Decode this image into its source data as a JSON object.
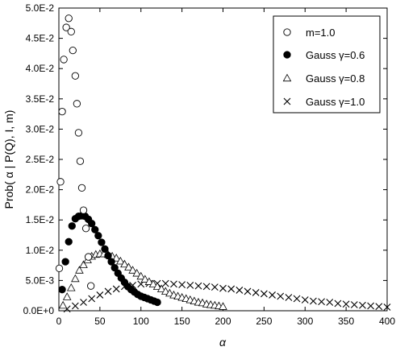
{
  "chart_data": {
    "type": "scatter",
    "title": "",
    "xlabel": "α",
    "ylabel": "Prob( α | P(Q), I, m)",
    "xlim": [
      0,
      400
    ],
    "ylim": [
      0,
      0.05
    ],
    "x_ticks": [
      0,
      50,
      100,
      150,
      200,
      250,
      300,
      350,
      400
    ],
    "x_tick_labels": [
      "0",
      "50",
      "100",
      "150",
      "200",
      "250",
      "300",
      "350",
      "400"
    ],
    "y_ticks": [
      0,
      0.005,
      0.01,
      0.015,
      0.02,
      0.025,
      0.03,
      0.035,
      0.04,
      0.045,
      0.05
    ],
    "y_tick_labels": [
      "0.0E+0",
      "5.0E-3",
      "1.0E-2",
      "1.5E-2",
      "2.0E-2",
      "2.5E-2",
      "3.0E-2",
      "3.5E-2",
      "4.0E-2",
      "4.5E-2",
      "5.0E-2"
    ],
    "grid": false,
    "legend_position": "top-right",
    "series": [
      {
        "name": "m=1.0",
        "marker": "open-circle",
        "color": "#000000",
        "x": [
          0.5,
          2,
          4,
          6,
          9,
          12,
          15,
          17,
          20,
          22,
          24,
          26,
          28,
          30,
          33,
          36,
          39
        ],
        "y": [
          0.007,
          0.0213,
          0.0329,
          0.0415,
          0.0468,
          0.0483,
          0.0461,
          0.043,
          0.0388,
          0.0342,
          0.0294,
          0.0247,
          0.0203,
          0.0166,
          0.0136,
          0.0089,
          0.0041
        ]
      },
      {
        "name": "Gauss γ=0.6",
        "marker": "filled-circle",
        "color": "#000000",
        "x": [
          4,
          8,
          12,
          16,
          20,
          24,
          28,
          32,
          36,
          40,
          44,
          48,
          52,
          56,
          60,
          64,
          68,
          72,
          76,
          80,
          84,
          88,
          92,
          96,
          100,
          104,
          108,
          112,
          116,
          120
        ],
        "y": [
          0.0035,
          0.0081,
          0.0114,
          0.014,
          0.0152,
          0.0156,
          0.0157,
          0.0156,
          0.0151,
          0.0144,
          0.0134,
          0.0124,
          0.0113,
          0.0102,
          0.0091,
          0.0081,
          0.0071,
          0.0062,
          0.0054,
          0.0047,
          0.004,
          0.0035,
          0.0031,
          0.0027,
          0.0024,
          0.0022,
          0.002,
          0.0018,
          0.0016,
          0.0014
        ]
      },
      {
        "name": "Gauss γ=0.8",
        "marker": "open-triangle",
        "color": "#000000",
        "x": [
          5,
          10,
          15,
          20,
          25,
          30,
          35,
          40,
          45,
          50,
          55,
          60,
          65,
          70,
          75,
          80,
          85,
          90,
          95,
          100,
          105,
          110,
          115,
          120,
          125,
          130,
          135,
          140,
          145,
          150,
          155,
          160,
          165,
          170,
          175,
          180,
          185,
          190,
          195,
          200
        ],
        "y": [
          0.0009,
          0.0023,
          0.0038,
          0.0053,
          0.0067,
          0.0076,
          0.0084,
          0.009,
          0.0093,
          0.0094,
          0.0094,
          0.0093,
          0.009,
          0.0087,
          0.0082,
          0.0077,
          0.0072,
          0.0067,
          0.0062,
          0.0057,
          0.0052,
          0.0048,
          0.0044,
          0.004,
          0.0036,
          0.0032,
          0.0029,
          0.0026,
          0.0024,
          0.0022,
          0.002,
          0.0018,
          0.0016,
          0.0014,
          0.0013,
          0.0011,
          0.001,
          0.0009,
          0.0008,
          0.0007
        ]
      },
      {
        "name": "Gauss γ=1.0",
        "marker": "cross",
        "color": "#000000",
        "x": [
          10,
          20,
          30,
          40,
          50,
          60,
          70,
          80,
          90,
          100,
          110,
          120,
          130,
          140,
          150,
          160,
          170,
          180,
          190,
          200,
          210,
          220,
          230,
          240,
          250,
          260,
          270,
          280,
          290,
          300,
          310,
          320,
          330,
          340,
          350,
          360,
          370,
          380,
          390,
          400
        ],
        "y": [
          0.0003,
          0.0008,
          0.0014,
          0.002,
          0.0026,
          0.0032,
          0.0036,
          0.004,
          0.0042,
          0.0044,
          0.0045,
          0.0045,
          0.0045,
          0.0044,
          0.0043,
          0.0042,
          0.0041,
          0.004,
          0.0039,
          0.0037,
          0.0036,
          0.0034,
          0.0032,
          0.003,
          0.0028,
          0.0026,
          0.0024,
          0.0022,
          0.002,
          0.0018,
          0.0016,
          0.0015,
          0.0014,
          0.0012,
          0.0011,
          0.001,
          0.0009,
          0.0008,
          0.0007,
          0.0006
        ]
      }
    ]
  }
}
